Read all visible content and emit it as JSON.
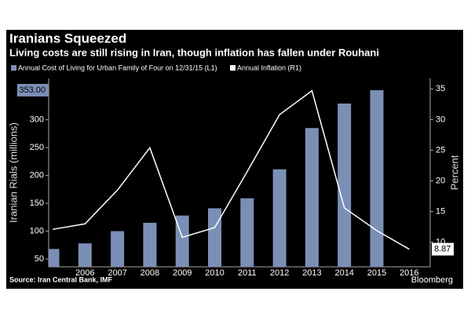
{
  "chart_data": {
    "type": "bar_line",
    "title": "Iranians Squeezed",
    "subtitle": "Living costs are still rising in Iran, though inflation has fallen under Rouhani",
    "ylabel": "Iranian Rials (millions)",
    "y2label": "Percent",
    "source": "Source: Iran Central Bank, IMF",
    "brand": "Bloomberg",
    "categories": [
      null,
      "2006",
      "2007",
      "2008",
      "2009",
      "2010",
      "2011",
      "2012",
      "2013",
      "2014",
      "2015",
      "2016"
    ],
    "series": [
      {
        "name": "Annual Cost of Living for Urban Family of Four on 12/31/15 (L1)",
        "type": "bar",
        "color": "#7b8fb6",
        "values": [
          68,
          78,
          100,
          115,
          128,
          141,
          159,
          211,
          285,
          329,
          353,
          null
        ],
        "value_labels": [
          null,
          null,
          null,
          null,
          null,
          null,
          null,
          null,
          null,
          null,
          "353.00",
          null
        ]
      },
      {
        "name": "Annual Inflation (R1)",
        "type": "line",
        "axis": "y2",
        "color": "#ffffff",
        "values": [
          12.1,
          13.0,
          18.5,
          25.4,
          10.8,
          12.4,
          21.5,
          30.8,
          34.7,
          15.6,
          11.9,
          8.87
        ],
        "value_labels": [
          null,
          null,
          null,
          null,
          null,
          null,
          null,
          null,
          null,
          null,
          null,
          "8.87"
        ]
      }
    ],
    "ylim": [
      36,
      374
    ],
    "yticks": [
      50,
      100,
      150,
      200,
      250,
      300
    ],
    "y2lim": [
      6,
      36.7
    ],
    "y2ticks": [
      10,
      15,
      20,
      25,
      30,
      35
    ]
  }
}
